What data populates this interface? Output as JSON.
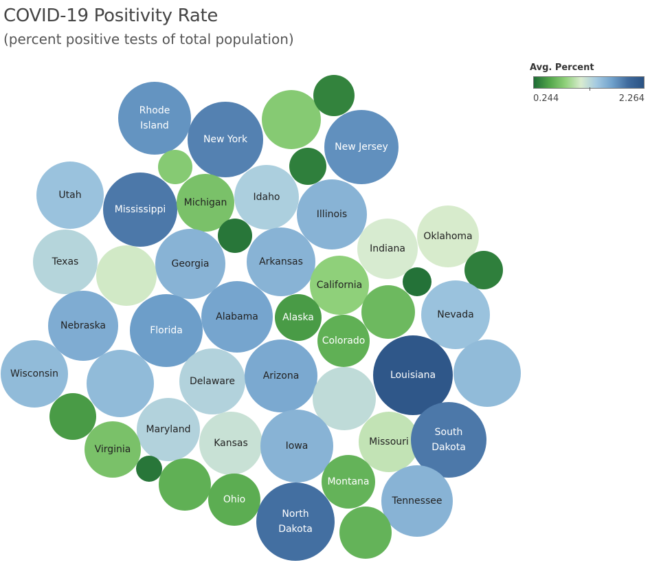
{
  "chart_data": {
    "type": "packed-bubble",
    "title": "COVID-19 Positivity Rate",
    "subtitle": "(percent positive tests of total population)",
    "legend": {
      "title": "Avg. Percent",
      "min": 0.244,
      "max": 2.264,
      "min_label": "0.244",
      "max_label": "2.264",
      "placement": "top-right",
      "colors": [
        "#1e6b35",
        "#52a64a",
        "#8fd07a",
        "#d9eccf",
        "#a3c9e1",
        "#6fa0cb",
        "#3f6a9d",
        "#2a5283"
      ]
    },
    "bubbles": [
      {
        "label": [
          "Rhode",
          "Island"
        ],
        "value": 1.75
      },
      {
        "label": [],
        "value": 0.78
      },
      {
        "label": [],
        "value": 0.36
      },
      {
        "label": [
          "New York"
        ],
        "value": 1.85
      },
      {
        "label": [
          "New Jersey"
        ],
        "value": 1.77
      },
      {
        "label": [],
        "value": 0.34
      },
      {
        "label": [],
        "value": 0.78
      },
      {
        "label": [
          "Utah"
        ],
        "value": 1.45
      },
      {
        "label": [
          "Mississippi"
        ],
        "value": 1.9
      },
      {
        "label": [
          "Michigan"
        ],
        "value": 0.72
      },
      {
        "label": [
          "Idaho"
        ],
        "value": 1.35
      },
      {
        "label": [
          "Illinois"
        ],
        "value": 1.55
      },
      {
        "label": [],
        "value": 0.3
      },
      {
        "label": [
          "Indiana"
        ],
        "value": 1.12
      },
      {
        "label": [
          "Oklahoma"
        ],
        "value": 1.1
      },
      {
        "label": [
          "Texas"
        ],
        "value": 1.3
      },
      {
        "label": [],
        "value": 1.08
      },
      {
        "label": [
          "Georgia"
        ],
        "value": 1.55
      },
      {
        "label": [
          "Arkansas"
        ],
        "value": 1.55
      },
      {
        "label": [
          "California"
        ],
        "value": 0.82
      },
      {
        "label": [],
        "value": 0.28
      },
      {
        "label": [],
        "value": 0.34
      },
      {
        "label": [
          "Nebraska"
        ],
        "value": 1.6
      },
      {
        "label": [
          "Florida"
        ],
        "value": 1.7
      },
      {
        "label": [
          "Alabama"
        ],
        "value": 1.65
      },
      {
        "label": [
          "Alaska"
        ],
        "value": 0.48
      },
      {
        "label": [
          "Colorado"
        ],
        "value": 0.6
      },
      {
        "label": [],
        "value": 0.66
      },
      {
        "label": [
          "Nevada"
        ],
        "value": 1.45
      },
      {
        "label": [
          "Wisconsin"
        ],
        "value": 1.5
      },
      {
        "label": [],
        "value": 1.5
      },
      {
        "label": [
          "Delaware"
        ],
        "value": 1.32
      },
      {
        "label": [
          "Arizona"
        ],
        "value": 1.62
      },
      {
        "label": [],
        "value": 1.25
      },
      {
        "label": [
          "Louisiana"
        ],
        "value": 2.2
      },
      {
        "label": [],
        "value": 1.5
      },
      {
        "label": [],
        "value": 0.48
      },
      {
        "label": [
          "Maryland"
        ],
        "value": 1.32
      },
      {
        "label": [
          "Kansas"
        ],
        "value": 1.2
      },
      {
        "label": [
          "Iowa"
        ],
        "value": 1.55
      },
      {
        "label": [
          "Missouri"
        ],
        "value": 1.02
      },
      {
        "label": [
          "South",
          "Dakota"
        ],
        "value": 1.9
      },
      {
        "label": [
          "Virginia"
        ],
        "value": 0.72
      },
      {
        "label": [],
        "value": 0.3
      },
      {
        "label": [],
        "value": 0.6
      },
      {
        "label": [
          "Ohio"
        ],
        "value": 0.58
      },
      {
        "label": [
          "Montana"
        ],
        "value": 0.62
      },
      {
        "label": [
          "Tennessee"
        ],
        "value": 1.55
      },
      {
        "label": [
          "North",
          "Dakota"
        ],
        "value": 1.95
      },
      {
        "label": [],
        "value": 0.62
      }
    ]
  }
}
